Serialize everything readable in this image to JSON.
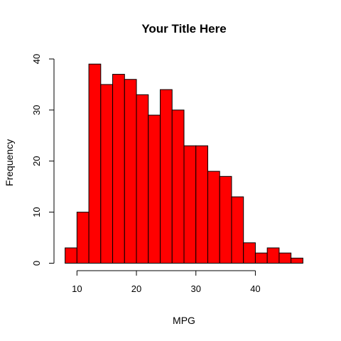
{
  "chart_data": {
    "type": "bar",
    "title": "Your Title Here",
    "xlabel": "MPG",
    "ylabel": "Frequency",
    "bar_color": "#ff0000",
    "bin_width": 2,
    "x": [
      9,
      11,
      13,
      15,
      17,
      19,
      21,
      23,
      25,
      27,
      29,
      31,
      33,
      35,
      37,
      39,
      41,
      43,
      45,
      47
    ],
    "values": [
      3,
      10,
      39,
      35,
      37,
      36,
      33,
      29,
      34,
      30,
      23,
      23,
      18,
      17,
      13,
      4,
      2,
      3,
      2,
      1
    ],
    "xticks": [
      10,
      20,
      30,
      40
    ],
    "yticks": [
      0,
      10,
      20,
      30,
      40
    ],
    "xlim": [
      8,
      48
    ],
    "ylim": [
      0,
      40
    ]
  }
}
